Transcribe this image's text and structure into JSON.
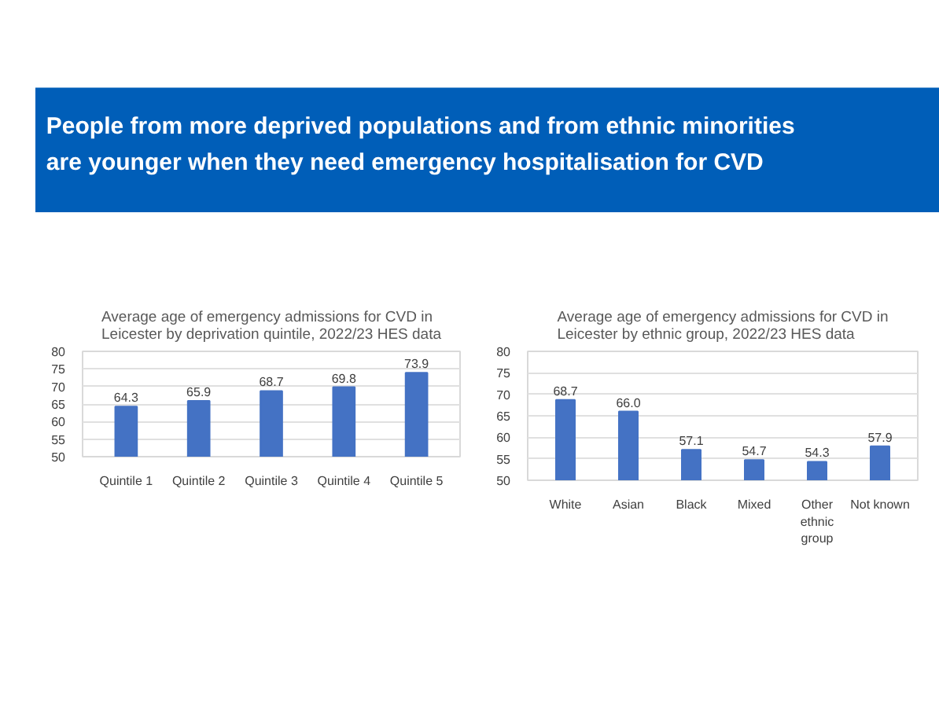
{
  "chart_data": [
    {
      "type": "other",
      "title": "People from more deprived populations and from ethnic minorities\nare younger when they need emergency hospitalisation for CVD",
      "color": "#005eb8"
    },
    {
      "type": "bar",
      "title": "Average age of emergency admissions for CVD in\nLeicester by deprivation quintile, 2022/23 HES data",
      "categories": [
        "Quintile 1",
        "Quintile 2",
        "Quintile 3",
        "Quintile 4",
        "Quintile 5"
      ],
      "values": [
        64.3,
        65.9,
        68.7,
        69.8,
        73.9
      ],
      "value_labels": [
        "64.3",
        "65.9",
        "68.7",
        "69.8",
        "73.9"
      ],
      "color": "#4472c4",
      "ylim": [
        50,
        80
      ],
      "yticks": [
        50,
        55,
        60,
        65,
        70,
        75,
        80
      ],
      "grid": "y"
    },
    {
      "type": "bar",
      "title": "Average age of emergency admissions for CVD in\nLeicester by ethnic group, 2022/23 HES data",
      "categories": [
        "White",
        "Asian",
        "Black",
        "Mixed",
        "Other ethnic group",
        "Not known"
      ],
      "values": [
        68.7,
        66.0,
        57.1,
        54.7,
        54.3,
        57.9
      ],
      "value_labels": [
        "68.7",
        "66.0",
        "57.1",
        "54.7",
        "54.3",
        "57.9"
      ],
      "color": "#4472c4",
      "ylim": [
        50,
        80
      ],
      "yticks": [
        50,
        55,
        60,
        65,
        70,
        75,
        80
      ],
      "grid": "y"
    }
  ]
}
